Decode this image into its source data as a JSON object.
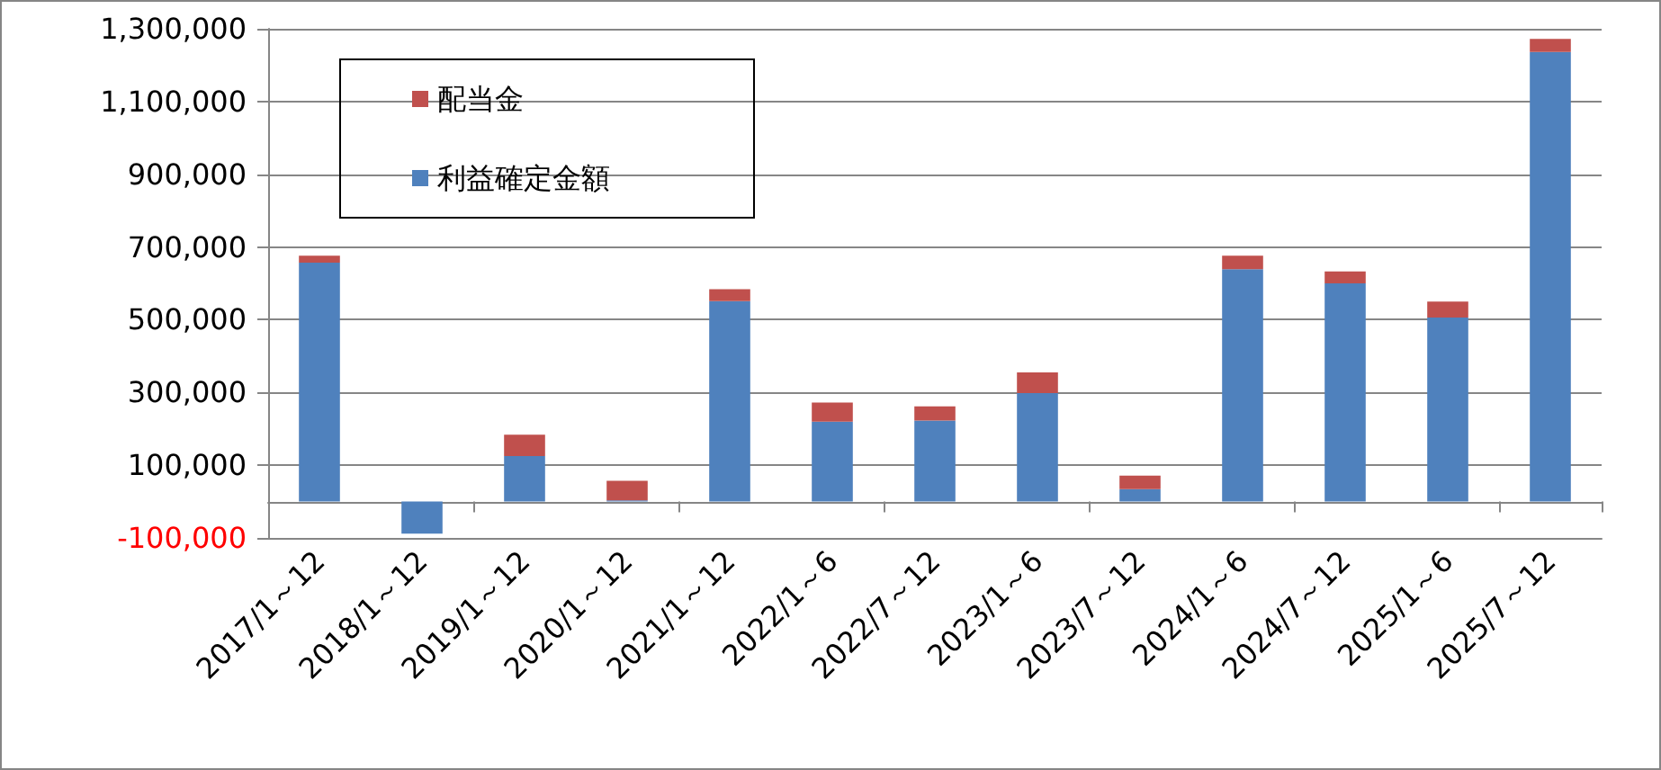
{
  "chart_data": {
    "type": "bar",
    "stacked": true,
    "categories": [
      "2017/1～12",
      "2018/1～12",
      "2019/1～12",
      "2020/1～12",
      "2021/1～12",
      "2022/1～6",
      "2022/7～12",
      "2023/1～6",
      "2023/7～12",
      "2024/1～6",
      "2024/7～12",
      "2025/1～6",
      "2025/7～12"
    ],
    "series": [
      {
        "name": "利益確定金額",
        "color": "#4f81bd",
        "values": [
          657000,
          -88000,
          125000,
          3000,
          551000,
          220000,
          223000,
          298000,
          34000,
          639000,
          600000,
          506000,
          1236000
        ]
      },
      {
        "name": "配当金",
        "color": "#c0504d",
        "values": [
          19000,
          0,
          59000,
          54000,
          33000,
          52000,
          39000,
          57000,
          37000,
          37000,
          33000,
          44000,
          36000
        ]
      }
    ],
    "ylim": [
      -100000,
      1300000
    ],
    "yticks": [
      {
        "value": -100000,
        "label": "-100,000"
      },
      {
        "value": 100000,
        "label": "100,000"
      },
      {
        "value": 300000,
        "label": "300,000"
      },
      {
        "value": 500000,
        "label": "500,000"
      },
      {
        "value": 700000,
        "label": "700,000"
      },
      {
        "value": 900000,
        "label": "900,000"
      },
      {
        "value": 1100000,
        "label": "1,100,000"
      },
      {
        "value": 1300000,
        "label": "1,300,000"
      }
    ],
    "grid": "y",
    "legend": "top left"
  }
}
